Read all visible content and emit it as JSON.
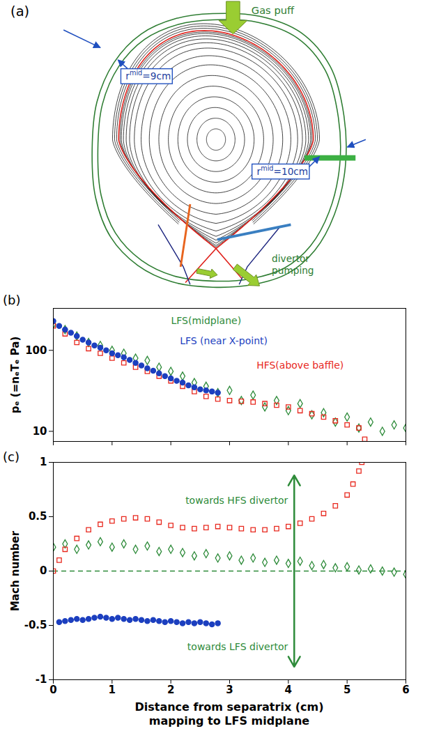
{
  "diagram": {
    "label": "(a)",
    "gas_puff": "Gas puff",
    "divertor_pumping": [
      "divertor",
      "pumping"
    ],
    "r_mid": [
      {
        "base": "r",
        "sup": "mid",
        "rest": "=9cm"
      },
      {
        "base": "r",
        "sup": "mid",
        "rest": "=10cm"
      }
    ]
  },
  "chart_data": [
    {
      "type": "scatter",
      "label": "(b)",
      "y_label": "pₑ (=nₑTₑ Pa)",
      "xlim": [
        0,
        6
      ],
      "xticks": [
        0,
        1,
        2,
        3,
        4,
        5,
        6
      ],
      "ylim": [
        7.5,
        330
      ],
      "yticks": [
        10,
        100
      ],
      "log": "y",
      "tick_labels": "y",
      "series": [
        {
          "color": "#2e8b3a",
          "marker": "diamond-open",
          "x": [
            0,
            0.2,
            0.4,
            0.6,
            0.8,
            1,
            1.2,
            1.4,
            1.6,
            1.8,
            2,
            2.2,
            2.4,
            2.6,
            2.8,
            3,
            3.2,
            3.4,
            3.6,
            3.8,
            4,
            4.2,
            4.4,
            4.6,
            4.8,
            5,
            5.2,
            5.4,
            5.6,
            5.8,
            6
          ],
          "values": [
            210,
            180,
            150,
            125,
            115,
            100,
            92,
            80,
            75,
            62,
            55,
            48,
            40,
            36,
            30,
            32,
            24,
            28,
            20,
            24,
            18,
            22,
            16,
            17,
            13,
            15,
            11,
            13,
            10,
            12,
            11
          ]
        },
        {
          "color": "#e8281e",
          "marker": "square-open",
          "x": [
            0,
            0.2,
            0.4,
            0.6,
            0.8,
            1,
            1.2,
            1.4,
            1.6,
            1.8,
            2,
            2.2,
            2.4,
            2.6,
            2.8,
            3,
            3.2,
            3.4,
            3.6,
            3.8,
            4,
            4.2,
            4.4,
            4.6,
            4.8,
            5,
            5.2,
            5.3
          ],
          "values": [
            200,
            160,
            125,
            105,
            92,
            80,
            70,
            62,
            55,
            48,
            42,
            36,
            31,
            27,
            25,
            24,
            23.5,
            23,
            22,
            21,
            20,
            18,
            16.5,
            15,
            13.5,
            12,
            11,
            8
          ]
        },
        {
          "color": "#1c3fbf",
          "marker": "circle",
          "x": [
            0,
            0.1,
            0.2,
            0.3,
            0.4,
            0.5,
            0.6,
            0.7,
            0.8,
            0.9,
            1,
            1.1,
            1.2,
            1.3,
            1.4,
            1.5,
            1.6,
            1.7,
            1.8,
            1.9,
            2,
            2.1,
            2.2,
            2.3,
            2.4,
            2.5,
            2.6,
            2.7,
            2.8
          ],
          "values": [
            230,
            200,
            180,
            165,
            150,
            135,
            125,
            115,
            108,
            100,
            92,
            87,
            82,
            76,
            70,
            65,
            60,
            56,
            52,
            48,
            45,
            42,
            40,
            37,
            35,
            33,
            32,
            31,
            30
          ]
        }
      ],
      "annotations": [
        {
          "text": "LFS(midplane)",
          "x": 2.6,
          "y": 230,
          "color": "#2e8b3a"
        },
        {
          "text": "LFS (near X-point)",
          "x": 2.9,
          "y": 130,
          "color": "#1c3fbf"
        },
        {
          "text": "HFS(above baffle)",
          "x": 4.2,
          "y": 65,
          "color": "#e8281e"
        }
      ]
    },
    {
      "type": "scatter",
      "label": "(c)",
      "y_label": "Mach number",
      "x_label": [
        "Distance from separatrix (cm)",
        "mapping to LFS midplane"
      ],
      "xlim": [
        0,
        6
      ],
      "xticks": [
        0,
        1,
        2,
        3,
        4,
        5,
        6
      ],
      "ylim": [
        -1,
        1
      ],
      "yticks": [
        -1,
        -0.5,
        0,
        0.5,
        1
      ],
      "series": [
        {
          "color": "#2e8b3a",
          "marker": "diamond-open",
          "x": [
            0,
            0.2,
            0.4,
            0.6,
            0.8,
            1,
            1.2,
            1.4,
            1.6,
            1.8,
            2,
            2.2,
            2.4,
            2.6,
            2.8,
            3,
            3.2,
            3.4,
            3.6,
            3.8,
            4,
            4.2,
            4.4,
            4.6,
            4.8,
            5,
            5.2,
            5.4,
            5.6,
            5.8,
            6
          ],
          "values": [
            0.22,
            0.25,
            0.2,
            0.24,
            0.27,
            0.22,
            0.25,
            0.2,
            0.23,
            0.18,
            0.2,
            0.17,
            0.14,
            0.16,
            0.12,
            0.14,
            0.1,
            0.12,
            0.08,
            0.1,
            0.07,
            0.09,
            0.05,
            0.06,
            0.03,
            0.04,
            0.01,
            0.02,
            0,
            -0.01,
            -0.03
          ]
        },
        {
          "color": "#e8281e",
          "marker": "square-open",
          "x": [
            0,
            0.1,
            0.2,
            0.4,
            0.6,
            0.8,
            1,
            1.2,
            1.4,
            1.6,
            1.8,
            2,
            2.2,
            2.4,
            2.6,
            2.8,
            3,
            3.2,
            3.4,
            3.6,
            3.8,
            4,
            4.2,
            4.4,
            4.6,
            4.8,
            5,
            5.1,
            5.2,
            5.25
          ],
          "values": [
            0,
            0.1,
            0.2,
            0.3,
            0.38,
            0.43,
            0.46,
            0.48,
            0.49,
            0.48,
            0.45,
            0.42,
            0.4,
            0.39,
            0.4,
            0.41,
            0.4,
            0.39,
            0.38,
            0.38,
            0.39,
            0.41,
            0.44,
            0.48,
            0.53,
            0.6,
            0.7,
            0.8,
            0.92,
            1
          ]
        },
        {
          "color": "#1c3fbf",
          "marker": "circle",
          "x": [
            0.1,
            0.2,
            0.3,
            0.4,
            0.5,
            0.6,
            0.7,
            0.8,
            0.9,
            1,
            1.1,
            1.2,
            1.3,
            1.4,
            1.5,
            1.6,
            1.7,
            1.8,
            1.9,
            2,
            2.1,
            2.2,
            2.3,
            2.4,
            2.5,
            2.6,
            2.7,
            2.8
          ],
          "values": [
            -0.47,
            -0.46,
            -0.45,
            -0.44,
            -0.45,
            -0.44,
            -0.43,
            -0.42,
            -0.43,
            -0.44,
            -0.43,
            -0.44,
            -0.45,
            -0.44,
            -0.45,
            -0.46,
            -0.45,
            -0.46,
            -0.47,
            -0.46,
            -0.47,
            -0.48,
            -0.47,
            -0.48,
            -0.47,
            -0.48,
            -0.49,
            -0.48
          ]
        }
      ],
      "hlines": [
        {
          "value": 0,
          "color": "#2e8b3a",
          "line_style": "dashed"
        }
      ],
      "annotations": [
        {
          "text": "towards HFS divertor",
          "x": 4.1,
          "y": 0.65,
          "color": "#2e8b3a",
          "arrow_y": [
            0,
            0.88
          ]
        },
        {
          "text": "towards LFS divertor",
          "x": 4.1,
          "y": -0.7,
          "color": "#2e8b3a",
          "arrow_y": [
            0,
            -0.88
          ]
        }
      ]
    }
  ]
}
